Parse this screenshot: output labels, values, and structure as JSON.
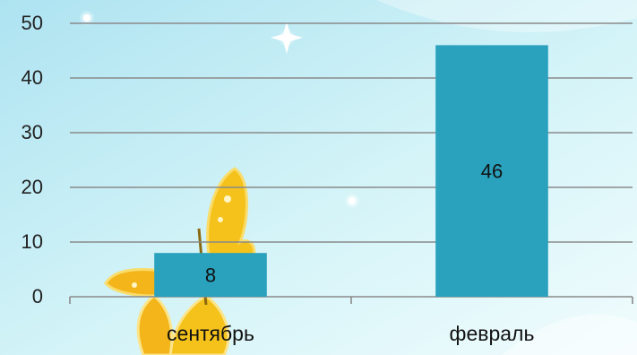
{
  "chart_data": {
    "type": "bar",
    "categories": [
      "сентябрь",
      "февраль"
    ],
    "values": [
      8,
      46
    ],
    "data_labels": [
      "8",
      "46"
    ],
    "title": "",
    "xlabel": "",
    "ylabel": "",
    "ylim": [
      0,
      50
    ],
    "yticks": [
      0,
      10,
      20,
      30,
      40,
      50
    ],
    "ytick_labels": [
      "0",
      "10",
      "20",
      "30",
      "40",
      "50"
    ],
    "grid": true,
    "legend": "none",
    "colors": {
      "bar": "#2aa2bd",
      "grid": "#8a8a8a",
      "background_top": "#bfe9f4",
      "background_bottom": "#eafafc",
      "butterfly": "#f5c21c"
    }
  }
}
